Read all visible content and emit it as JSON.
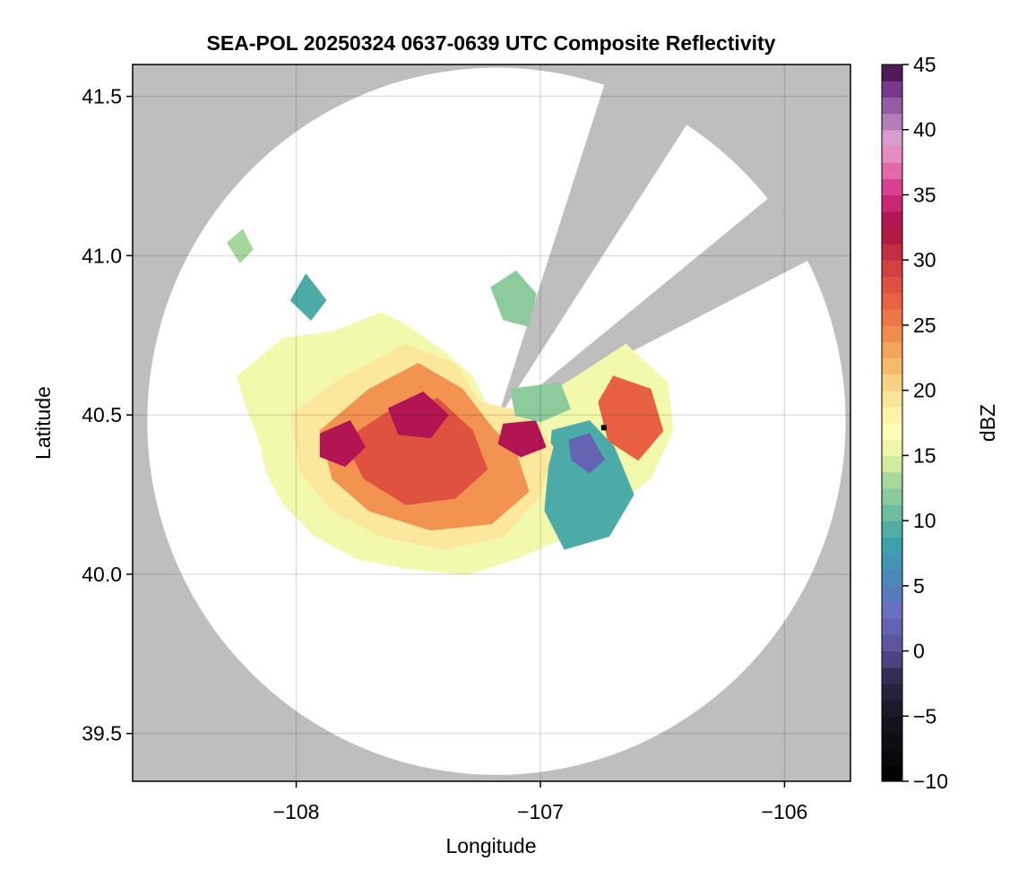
{
  "title": "SEA-POL 20250324 0637-0639 UTC Composite Reflectivity",
  "axes": {
    "xlabel": "Longitude",
    "ylabel": "Latitude",
    "xlim": [
      -108.67,
      -105.73
    ],
    "ylim": [
      39.35,
      41.6
    ],
    "xticks": [
      -108,
      -107,
      -106
    ],
    "xtick_labels": [
      "−108",
      "−107",
      "−106"
    ],
    "yticks": [
      39.5,
      40.0,
      40.5,
      41.0,
      41.5
    ],
    "ytick_labels": [
      "39.5",
      "40.0",
      "40.5",
      "41.0",
      "41.5"
    ],
    "grid": true,
    "outside_range_color": "#bebebe",
    "in_range_color": "#ffffff"
  },
  "radar": {
    "center_lon": -107.18,
    "center_lat": 40.48,
    "range_radius_deg_lon": 1.43,
    "range_radius_deg_lat": 1.11,
    "blocked_sectors_deg": [
      [
        18,
        33
      ],
      [
        51,
        63
      ]
    ]
  },
  "marker": {
    "lon": -106.74,
    "lat": 40.46,
    "color": "#000000"
  },
  "colorbar": {
    "label": "dBZ",
    "min": -10,
    "max": 45,
    "step": 1.25,
    "ticks": [
      -10,
      -5,
      0,
      5,
      10,
      15,
      20,
      25,
      30,
      35,
      40,
      45
    ],
    "tick_labels": [
      "−10",
      "−5",
      "0",
      "5",
      "10",
      "15",
      "20",
      "25",
      "30",
      "35",
      "40",
      "45"
    ],
    "palette": [
      {
        "v": -10,
        "c": "#000000"
      },
      {
        "v": -5,
        "c": "#17141f"
      },
      {
        "v": -2,
        "c": "#2f2b4e"
      },
      {
        "v": 0,
        "c": "#5a4e97"
      },
      {
        "v": 3,
        "c": "#6a6fc0"
      },
      {
        "v": 5,
        "c": "#4f82bd"
      },
      {
        "v": 8,
        "c": "#3aa0ae"
      },
      {
        "v": 10,
        "c": "#5db59f"
      },
      {
        "v": 13,
        "c": "#a5d69c"
      },
      {
        "v": 15,
        "c": "#e8f4a0"
      },
      {
        "v": 17,
        "c": "#fefeb7"
      },
      {
        "v": 20,
        "c": "#f9dd8f"
      },
      {
        "v": 22.5,
        "c": "#f4b05f"
      },
      {
        "v": 25,
        "c": "#f07f49"
      },
      {
        "v": 27.5,
        "c": "#e4583f"
      },
      {
        "v": 30,
        "c": "#cd3842"
      },
      {
        "v": 32.5,
        "c": "#a90f45"
      },
      {
        "v": 35,
        "c": "#d32d84"
      },
      {
        "v": 37.5,
        "c": "#e77bb6"
      },
      {
        "v": 39,
        "c": "#e4a4d1"
      },
      {
        "v": 41,
        "c": "#a774b4"
      },
      {
        "v": 43,
        "c": "#7b3c8e"
      },
      {
        "v": 45,
        "c": "#3b0a3e"
      }
    ]
  },
  "storm_regions": [
    {
      "dbz": 16,
      "poly": [
        [
          -108.24,
          40.62
        ],
        [
          -108.05,
          40.74
        ],
        [
          -107.85,
          40.76
        ],
        [
          -107.65,
          40.82
        ],
        [
          -107.55,
          40.78
        ],
        [
          -107.4,
          40.7
        ],
        [
          -107.28,
          40.62
        ],
        [
          -107.2,
          40.5
        ],
        [
          -107.0,
          40.55
        ],
        [
          -106.85,
          40.62
        ],
        [
          -106.65,
          40.72
        ],
        [
          -106.48,
          40.6
        ],
        [
          -106.46,
          40.45
        ],
        [
          -106.55,
          40.3
        ],
        [
          -106.7,
          40.22
        ],
        [
          -106.78,
          40.15
        ],
        [
          -106.95,
          40.1
        ],
        [
          -107.1,
          40.05
        ],
        [
          -107.3,
          40.0
        ],
        [
          -107.55,
          40.02
        ],
        [
          -107.75,
          40.05
        ],
        [
          -107.92,
          40.12
        ],
        [
          -108.05,
          40.22
        ],
        [
          -108.12,
          40.32
        ],
        [
          -108.15,
          40.42
        ],
        [
          -108.2,
          40.52
        ]
      ]
    },
    {
      "dbz": 9,
      "poly": [
        [
          -106.95,
          40.45
        ],
        [
          -106.8,
          40.48
        ],
        [
          -106.7,
          40.4
        ],
        [
          -106.62,
          40.25
        ],
        [
          -106.72,
          40.12
        ],
        [
          -106.9,
          40.08
        ],
        [
          -106.98,
          40.2
        ]
      ]
    },
    {
      "dbz": 19,
      "poly": [
        [
          -108.02,
          40.5
        ],
        [
          -107.8,
          40.62
        ],
        [
          -107.55,
          40.72
        ],
        [
          -107.35,
          40.66
        ],
        [
          -107.25,
          40.54
        ],
        [
          -107.05,
          40.5
        ],
        [
          -106.95,
          40.4
        ],
        [
          -107.0,
          40.25
        ],
        [
          -107.15,
          40.12
        ],
        [
          -107.4,
          40.08
        ],
        [
          -107.65,
          40.12
        ],
        [
          -107.85,
          40.2
        ],
        [
          -107.98,
          40.32
        ]
      ]
    },
    {
      "dbz": 24,
      "poly": [
        [
          -107.9,
          40.45
        ],
        [
          -107.7,
          40.58
        ],
        [
          -107.5,
          40.66
        ],
        [
          -107.32,
          40.58
        ],
        [
          -107.2,
          40.46
        ],
        [
          -107.1,
          40.38
        ],
        [
          -107.05,
          40.26
        ],
        [
          -107.2,
          40.16
        ],
        [
          -107.45,
          40.14
        ],
        [
          -107.7,
          40.2
        ],
        [
          -107.85,
          40.3
        ]
      ]
    },
    {
      "dbz": 28,
      "poly": [
        [
          -107.8,
          40.42
        ],
        [
          -107.6,
          40.52
        ],
        [
          -107.42,
          40.55
        ],
        [
          -107.28,
          40.45
        ],
        [
          -107.22,
          40.33
        ],
        [
          -107.35,
          40.24
        ],
        [
          -107.55,
          40.22
        ],
        [
          -107.72,
          40.3
        ]
      ]
    },
    {
      "dbz": 33,
      "poly": [
        [
          -107.62,
          40.52
        ],
        [
          -107.48,
          40.57
        ],
        [
          -107.38,
          40.5
        ],
        [
          -107.45,
          40.43
        ],
        [
          -107.58,
          40.44
        ]
      ]
    },
    {
      "dbz": 33,
      "poly": [
        [
          -107.9,
          40.44
        ],
        [
          -107.78,
          40.48
        ],
        [
          -107.72,
          40.4
        ],
        [
          -107.8,
          40.34
        ],
        [
          -107.9,
          40.37
        ]
      ]
    },
    {
      "dbz": 33,
      "poly": [
        [
          -107.15,
          40.47
        ],
        [
          -107.02,
          40.48
        ],
        [
          -106.98,
          40.4
        ],
        [
          -107.08,
          40.37
        ],
        [
          -107.17,
          40.41
        ]
      ]
    },
    {
      "dbz": 9,
      "poly": [
        [
          -107.96,
          40.94
        ],
        [
          -107.88,
          40.86
        ],
        [
          -107.94,
          40.8
        ],
        [
          -108.02,
          40.86
        ]
      ]
    },
    {
      "dbz": 12,
      "poly": [
        [
          -107.2,
          40.9
        ],
        [
          -107.1,
          40.95
        ],
        [
          -107.02,
          40.88
        ],
        [
          -107.05,
          40.78
        ],
        [
          -107.15,
          40.8
        ]
      ]
    },
    {
      "dbz": 13,
      "poly": [
        [
          -108.28,
          41.04
        ],
        [
          -108.22,
          41.08
        ],
        [
          -108.18,
          41.02
        ],
        [
          -108.23,
          40.98
        ]
      ]
    },
    {
      "dbz": 12,
      "poly": [
        [
          -107.12,
          40.58
        ],
        [
          -106.92,
          40.6
        ],
        [
          -106.88,
          40.52
        ],
        [
          -107.0,
          40.48
        ],
        [
          -107.1,
          40.5
        ]
      ]
    },
    {
      "dbz": 27,
      "poly": [
        [
          -106.7,
          40.62
        ],
        [
          -106.55,
          40.58
        ],
        [
          -106.5,
          40.45
        ],
        [
          -106.6,
          40.36
        ],
        [
          -106.72,
          40.42
        ],
        [
          -106.76,
          40.54
        ]
      ]
    },
    {
      "dbz": 2,
      "poly": [
        [
          -106.88,
          40.42
        ],
        [
          -106.8,
          40.44
        ],
        [
          -106.74,
          40.36
        ],
        [
          -106.8,
          40.32
        ],
        [
          -106.87,
          40.36
        ]
      ]
    }
  ]
}
